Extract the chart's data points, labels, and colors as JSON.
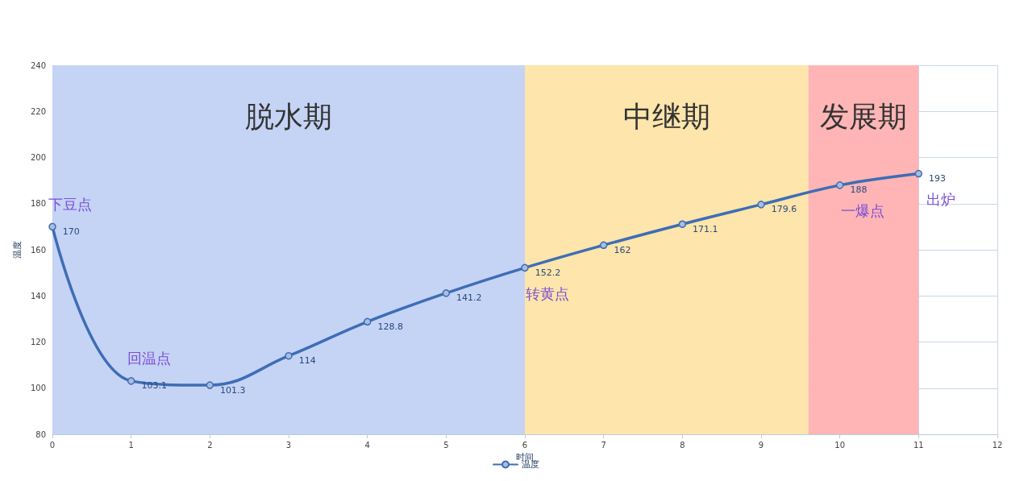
{
  "chart_data": {
    "type": "line",
    "xlabel": "时间",
    "ylabel": "温度",
    "x": [
      0,
      1,
      2,
      3,
      4,
      5,
      6,
      7,
      8,
      9,
      10,
      11
    ],
    "series": [
      {
        "name": "温度",
        "color": "#3e6db5",
        "values": [
          170,
          103.1,
          101.3,
          114,
          128.8,
          141.2,
          152.2,
          162,
          171.1,
          179.6,
          188,
          193
        ]
      }
    ],
    "xlim": [
      0,
      12
    ],
    "xticks": [
      0,
      1,
      2,
      3,
      4,
      5,
      6,
      7,
      8,
      9,
      10,
      11,
      12
    ],
    "ylim": [
      80,
      240
    ],
    "yticks": [
      80,
      100,
      120,
      140,
      160,
      180,
      200,
      220,
      240
    ],
    "bands": [
      {
        "axis": "x",
        "from": 0,
        "to": 6,
        "label": "脱水期",
        "color": "#c5d3f5"
      },
      {
        "axis": "x",
        "from": 6,
        "to": 9.6,
        "label": "中继期",
        "color": "#fde5ab"
      },
      {
        "axis": "x",
        "from": 9.6,
        "to": 11,
        "label": "发展期",
        "color": "#ffb5b5"
      }
    ],
    "annotations": [
      {
        "text": "下豆点",
        "x": 0,
        "y": 170
      },
      {
        "text": "回温点",
        "x": 1,
        "y": 103.1
      },
      {
        "text": "转黄点",
        "x": 6,
        "y": 152.2
      },
      {
        "text": "一爆点",
        "x": 10,
        "y": 188
      },
      {
        "text": "出炉",
        "x": 11,
        "y": 193
      }
    ],
    "data_labels": true,
    "grid": true,
    "legend": "bottom",
    "marker": "circle",
    "line_style": "solid"
  }
}
